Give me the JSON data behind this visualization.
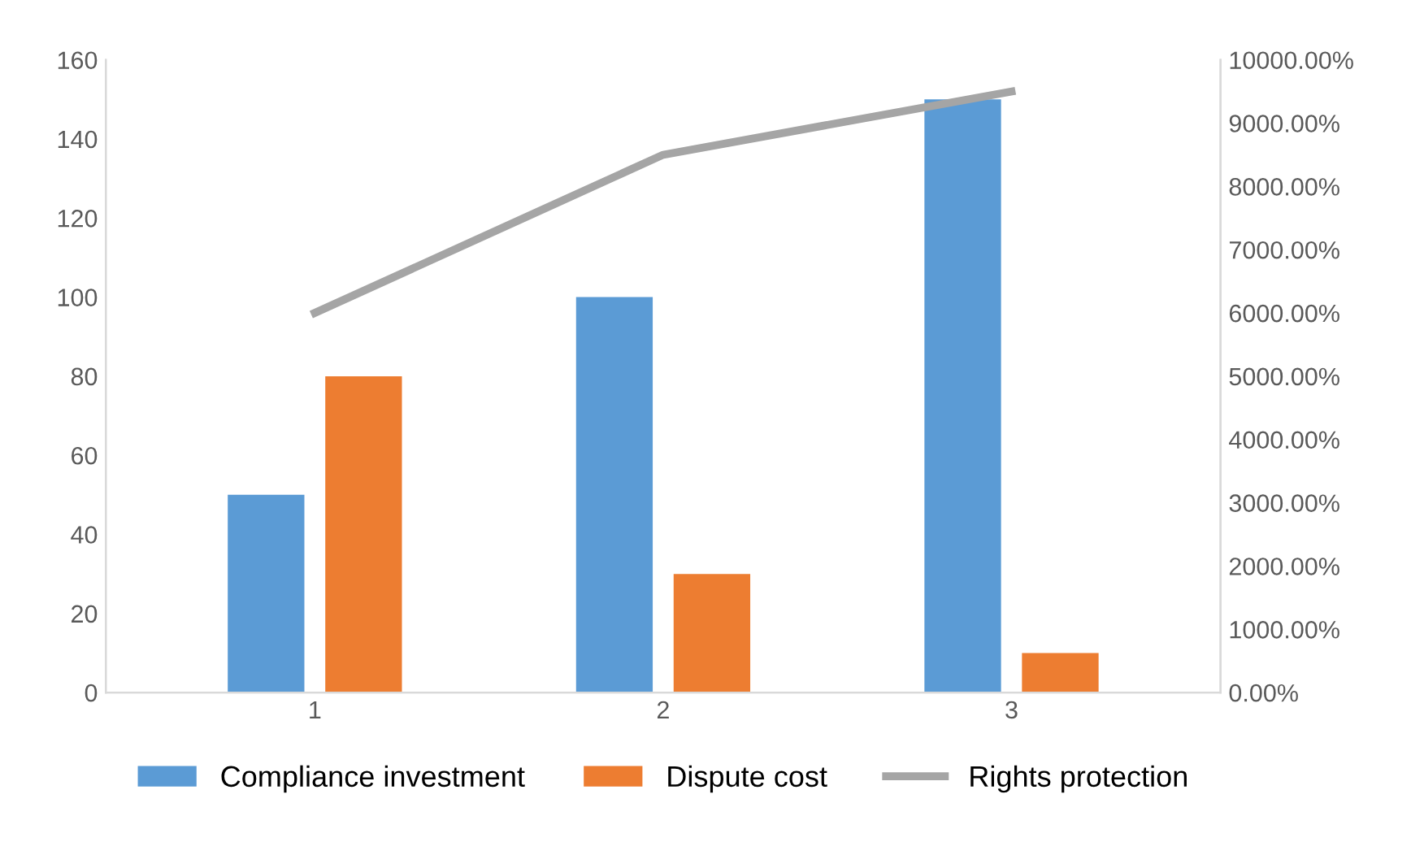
{
  "chart_data": {
    "type": "bar",
    "categories": [
      "1",
      "2",
      "3"
    ],
    "series": [
      {
        "name": "Compliance investment",
        "color": "#5b9bd5",
        "values": [
          50,
          100,
          150
        ]
      },
      {
        "name": "Dispute cost",
        "color": "#ed7d31",
        "values": [
          80,
          30,
          10
        ]
      },
      {
        "name": "Rights protection",
        "type": "line",
        "axis": "y2",
        "color": "#a5a5a5",
        "values": [
          6000,
          8500,
          9500
        ]
      }
    ],
    "ylim": [
      0,
      160
    ],
    "yticks": [
      0,
      20,
      40,
      60,
      80,
      100,
      120,
      140,
      160
    ],
    "y2lim": [
      0,
      10000
    ],
    "y2ticks": [
      {
        "value": 0,
        "label": "0.00%"
      },
      {
        "value": 1000,
        "label": "1000.00%"
      },
      {
        "value": 2000,
        "label": "2000.00%"
      },
      {
        "value": 3000,
        "label": "3000.00%"
      },
      {
        "value": 4000,
        "label": "4000.00%"
      },
      {
        "value": 5000,
        "label": "5000.00%"
      },
      {
        "value": 6000,
        "label": "6000.00%"
      },
      {
        "value": 7000,
        "label": "7000.00%"
      },
      {
        "value": 8000,
        "label": "8000.00%"
      },
      {
        "value": 9000,
        "label": "9000.00%"
      },
      {
        "value": 10000,
        "label": "10000.00%"
      }
    ],
    "grid": false,
    "legend": "bottom",
    "marker": "none",
    "line_style": "solid"
  }
}
